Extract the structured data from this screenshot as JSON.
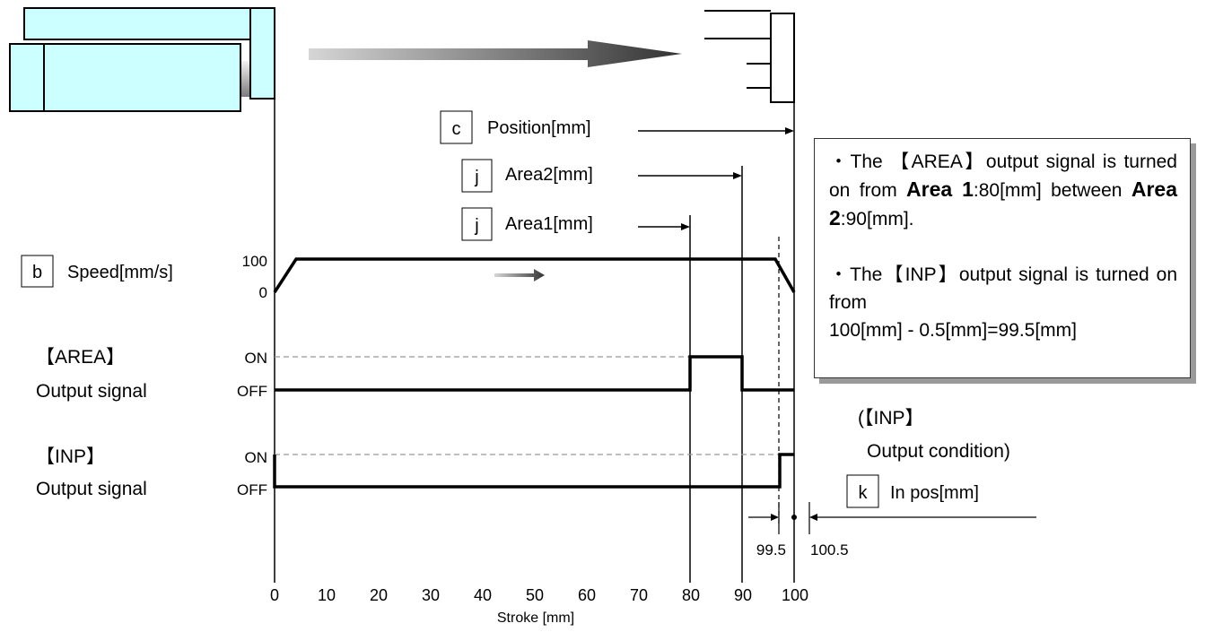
{
  "diagram": {
    "params": {
      "position": {
        "letter": "c",
        "label": "Position[mm]"
      },
      "area2": {
        "letter": "j",
        "label": "Area2[mm]"
      },
      "area1": {
        "letter": "j",
        "label": "Area1[mm]"
      },
      "speed": {
        "letter": "b",
        "label": "Speed[mm/s]"
      },
      "in_pos": {
        "letter": "k",
        "label": "In pos[mm]"
      }
    },
    "speed_levels": {
      "top": "100",
      "bottom": "0"
    },
    "signals": {
      "area": {
        "name": "【AREA】",
        "caption": "Output signal",
        "on": "ON",
        "off": "OFF"
      },
      "inp": {
        "name": "【INP】",
        "caption": "Output signal",
        "on": "ON",
        "off": "OFF"
      }
    },
    "inp_condition": {
      "line1": "(【INP】",
      "line2": "Output condition)"
    },
    "in_pos_bounds": {
      "low": "99.5",
      "high": "100.5"
    },
    "axis": {
      "label": "Stroke [mm]",
      "ticks": [
        "0",
        "10",
        "20",
        "30",
        "40",
        "50",
        "60",
        "70",
        "80",
        "90",
        "100"
      ]
    },
    "note": {
      "bullet1": {
        "a": "・The 【AREA】output signal is turned on from ",
        "area1_word": "Area 1",
        "area1_value": ":80",
        "unit1": "[mm]",
        "between": " between ",
        "area2_word": "Area 2",
        "area2_value": ":90",
        "unit2": "[mm]",
        "end": "."
      },
      "bullet2": {
        "line1": "・The【INP】output signal is turned on from",
        "line2": "100[mm] - 0.5[mm]=99.5[mm]"
      }
    },
    "colors": {
      "actuator_fill": "#ccffff",
      "arrow_light": "#d0d0d0",
      "arrow_dark": "#3a3a3a"
    }
  }
}
